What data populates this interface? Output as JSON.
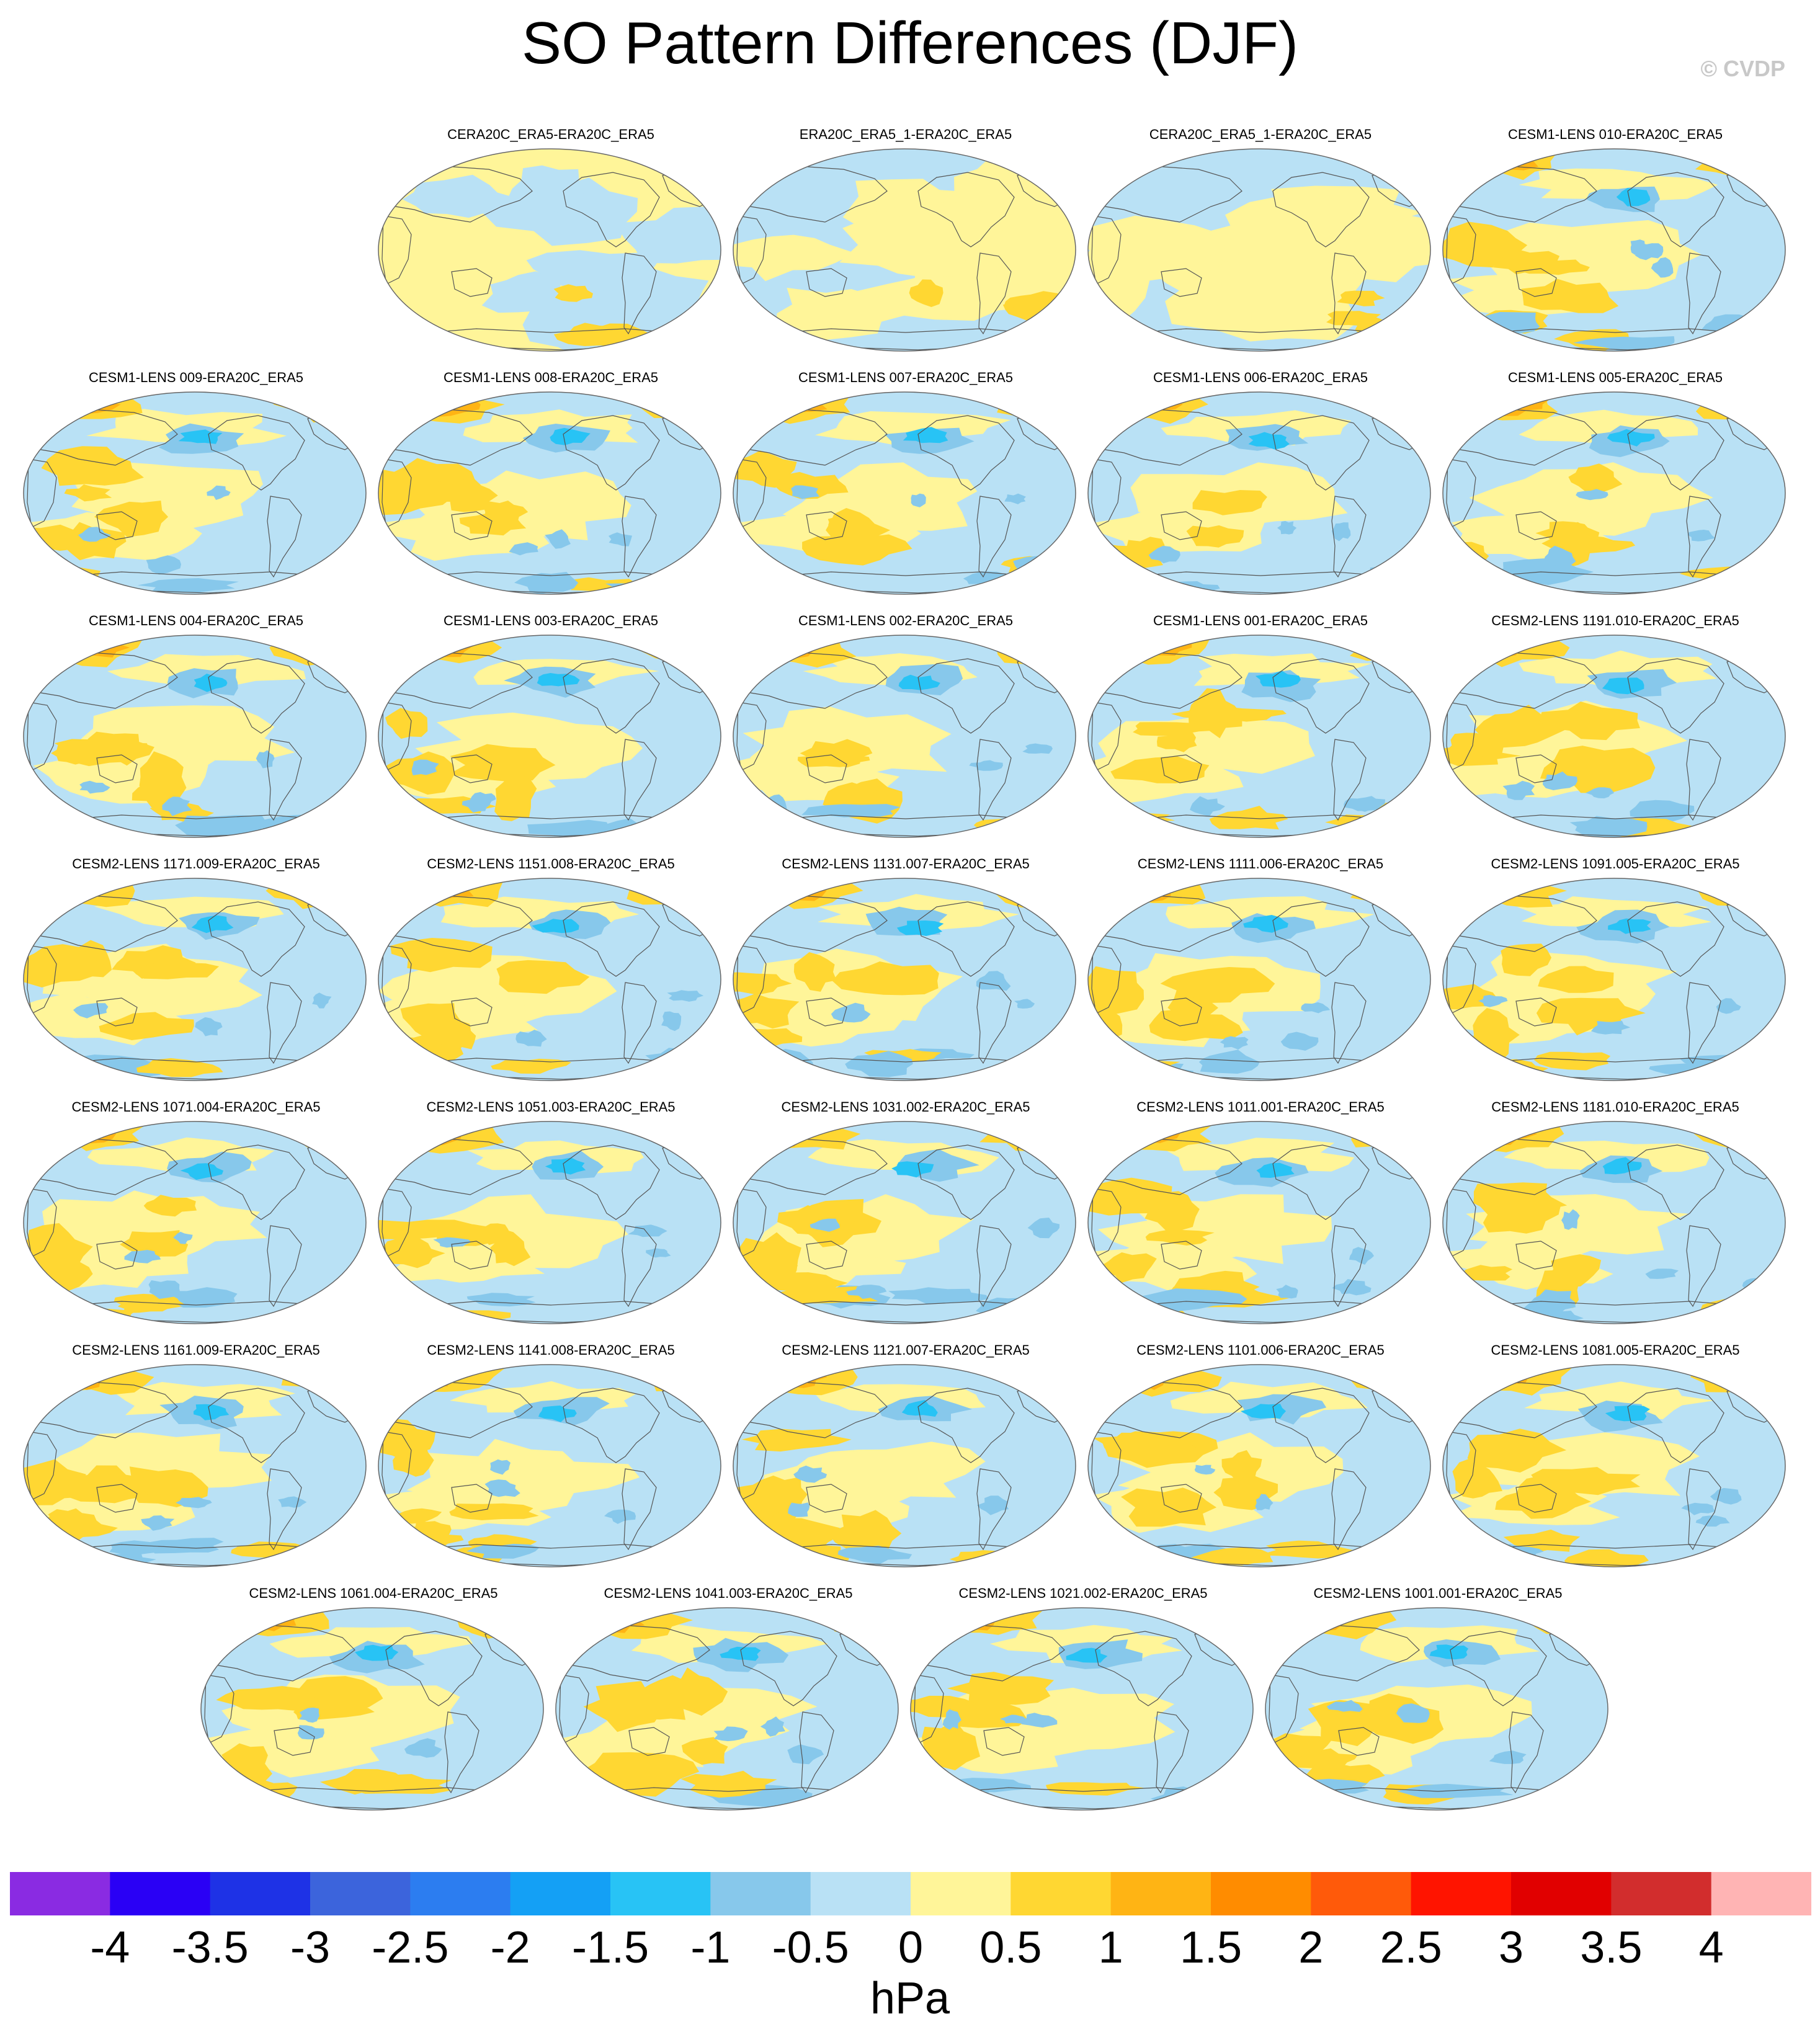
{
  "title": "SO Pattern Differences (DJF)",
  "credit": "© CVDP",
  "panels": [
    {
      "label": "CERA20C_ERA5-ERA20C_ERA5"
    },
    {
      "label": "ERA20C_ERA5_1-ERA20C_ERA5"
    },
    {
      "label": "CERA20C_ERA5_1-ERA20C_ERA5"
    },
    {
      "label": "CESM1-LENS 010-ERA20C_ERA5"
    },
    {
      "label": "CESM1-LENS 009-ERA20C_ERA5"
    },
    {
      "label": "CESM1-LENS 008-ERA20C_ERA5"
    },
    {
      "label": "CESM1-LENS 007-ERA20C_ERA5"
    },
    {
      "label": "CESM1-LENS 006-ERA20C_ERA5"
    },
    {
      "label": "CESM1-LENS 005-ERA20C_ERA5"
    },
    {
      "label": "CESM1-LENS 004-ERA20C_ERA5"
    },
    {
      "label": "CESM1-LENS 003-ERA20C_ERA5"
    },
    {
      "label": "CESM1-LENS 002-ERA20C_ERA5"
    },
    {
      "label": "CESM1-LENS 001-ERA20C_ERA5"
    },
    {
      "label": "CESM2-LENS 1191.010-ERA20C_ERA5"
    },
    {
      "label": "CESM2-LENS 1171.009-ERA20C_ERA5"
    },
    {
      "label": "CESM2-LENS 1151.008-ERA20C_ERA5"
    },
    {
      "label": "CESM2-LENS 1131.007-ERA20C_ERA5"
    },
    {
      "label": "CESM2-LENS 1111.006-ERA20C_ERA5"
    },
    {
      "label": "CESM2-LENS 1091.005-ERA20C_ERA5"
    },
    {
      "label": "CESM2-LENS 1071.004-ERA20C_ERA5"
    },
    {
      "label": "CESM2-LENS 1051.003-ERA20C_ERA5"
    },
    {
      "label": "CESM2-LENS 1031.002-ERA20C_ERA5"
    },
    {
      "label": "CESM2-LENS 1011.001-ERA20C_ERA5"
    },
    {
      "label": "CESM2-LENS 1181.010-ERA20C_ERA5"
    },
    {
      "label": "CESM2-LENS 1161.009-ERA20C_ERA5"
    },
    {
      "label": "CESM2-LENS 1141.008-ERA20C_ERA5"
    },
    {
      "label": "CESM2-LENS 1121.007-ERA20C_ERA5"
    },
    {
      "label": "CESM2-LENS 1101.006-ERA20C_ERA5"
    },
    {
      "label": "CESM2-LENS 1081.005-ERA20C_ERA5"
    },
    {
      "label": "CESM2-LENS 1061.004-ERA20C_ERA5"
    },
    {
      "label": "CESM2-LENS 1041.003-ERA20C_ERA5"
    },
    {
      "label": "CESM2-LENS 1021.002-ERA20C_ERA5"
    },
    {
      "label": "CESM2-LENS 1001.001-ERA20C_ERA5"
    }
  ],
  "chart_data": {
    "type": "heatmap",
    "title": "SO Pattern Differences (DJF)",
    "colorbar": {
      "units": "hPa",
      "tick_labels": [
        "-4",
        "-3.5",
        "-3",
        "-2.5",
        "-2",
        "-1.5",
        "-1",
        "-0.5",
        "0",
        "0.5",
        "1",
        "1.5",
        "2",
        "2.5",
        "3",
        "3.5",
        "4"
      ],
      "levels": [
        -4,
        -3.5,
        -3,
        -2.5,
        -2,
        -1.5,
        -1,
        -0.5,
        0,
        0.5,
        1,
        1.5,
        2,
        2.5,
        3,
        3.5,
        4
      ],
      "colors": [
        "#8a2be2",
        "#2a00f5",
        "#1e32e6",
        "#3c64dc",
        "#2c7df0",
        "#14a0f5",
        "#28c3f5",
        "#87c8eb",
        "#b9e1f5",
        "#fff599",
        "#ffd732",
        "#ffb414",
        "#ff8c00",
        "#ff5a0a",
        "#ff1400",
        "#e10000",
        "#d22d2d",
        "#ffb4b4"
      ]
    },
    "projection": "Robinson",
    "palette": {
      "coast": "#555555",
      "map_edge": "#666666"
    }
  }
}
